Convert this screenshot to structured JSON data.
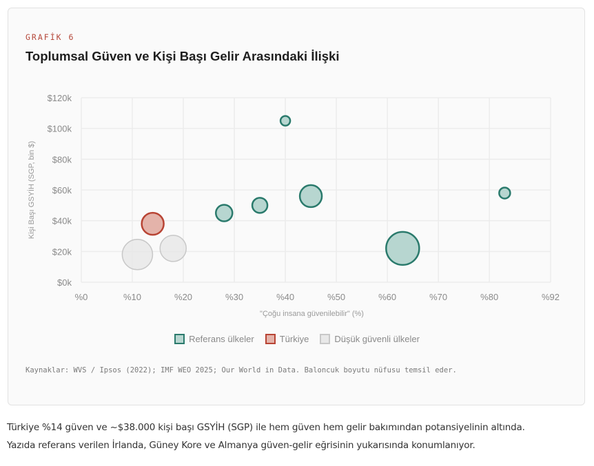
{
  "card": {
    "eyebrow": "GRAFİK 6",
    "title": "Toplumsal Güven ve Kişi Başı Gelir Arasındaki İlişki",
    "source": "Kaynaklar: WVS / Ipsos (2022); IMF WEO 2025; Our World in Data. Baloncuk boyutu nüfusu temsil eder."
  },
  "caption": {
    "line1": "Türkiye %14 güven ve ~$38.000 kişi başı GSYİH (SGP) ile hem güven hem gelir bakımından potansiyelinin altında.",
    "line2": "Yazıda referans verilen İrlanda, Güney Kore ve Almanya güven-gelir eğrisinin yukarısında konumlanıyor."
  },
  "colors": {
    "reference_fill": "#b7d6d0",
    "reference_stroke": "#2a7a6c",
    "turkey_fill": "#e4b3aa",
    "turkey_stroke": "#b84434",
    "lowtrust_fill": "#e8e8e8",
    "lowtrust_stroke": "#c8c8c8",
    "grid": "#ececec"
  },
  "chart_data": {
    "type": "scatter",
    "subtype": "bubble",
    "title": "Toplumsal Güven ve Kişi Başı Gelir Arasındaki İlişki",
    "xlabel": "\"Çoğu insana güvenilebilir\" (%)",
    "ylabel": "Kişi Başı GSYİH (SGP, bin $)",
    "xlim": [
      0,
      92
    ],
    "ylim": [
      0,
      120
    ],
    "xticks": [
      0,
      10,
      20,
      30,
      40,
      50,
      60,
      70,
      80,
      92
    ],
    "xtick_labels": [
      "%0",
      "%10",
      "%20",
      "%30",
      "%40",
      "%50",
      "%60",
      "%70",
      "%80",
      "%92"
    ],
    "yticks": [
      0,
      20,
      40,
      60,
      80,
      100,
      120
    ],
    "ytick_labels": [
      "$0k",
      "$20k",
      "$40k",
      "$60k",
      "$80k",
      "$100k",
      "$120k"
    ],
    "grid": true,
    "legend_position": "bottom-center",
    "series": [
      {
        "name": "Referans ülkeler",
        "key": "reference",
        "points": [
          {
            "x": 28,
            "y": 45,
            "size": 12
          },
          {
            "x": 35,
            "y": 50,
            "size": 11
          },
          {
            "x": 40,
            "y": 105,
            "size": 7
          },
          {
            "x": 45,
            "y": 56,
            "size": 16
          },
          {
            "x": 63,
            "y": 22,
            "size": 24
          },
          {
            "x": 83,
            "y": 58,
            "size": 8
          }
        ]
      },
      {
        "name": "Türkiye",
        "key": "turkey",
        "points": [
          {
            "x": 14,
            "y": 38,
            "size": 16
          }
        ]
      },
      {
        "name": "Düşük güvenli ülkeler",
        "key": "lowtrust",
        "points": [
          {
            "x": 11,
            "y": 18,
            "size": 22
          },
          {
            "x": 18,
            "y": 22,
            "size": 19
          }
        ]
      }
    ]
  }
}
